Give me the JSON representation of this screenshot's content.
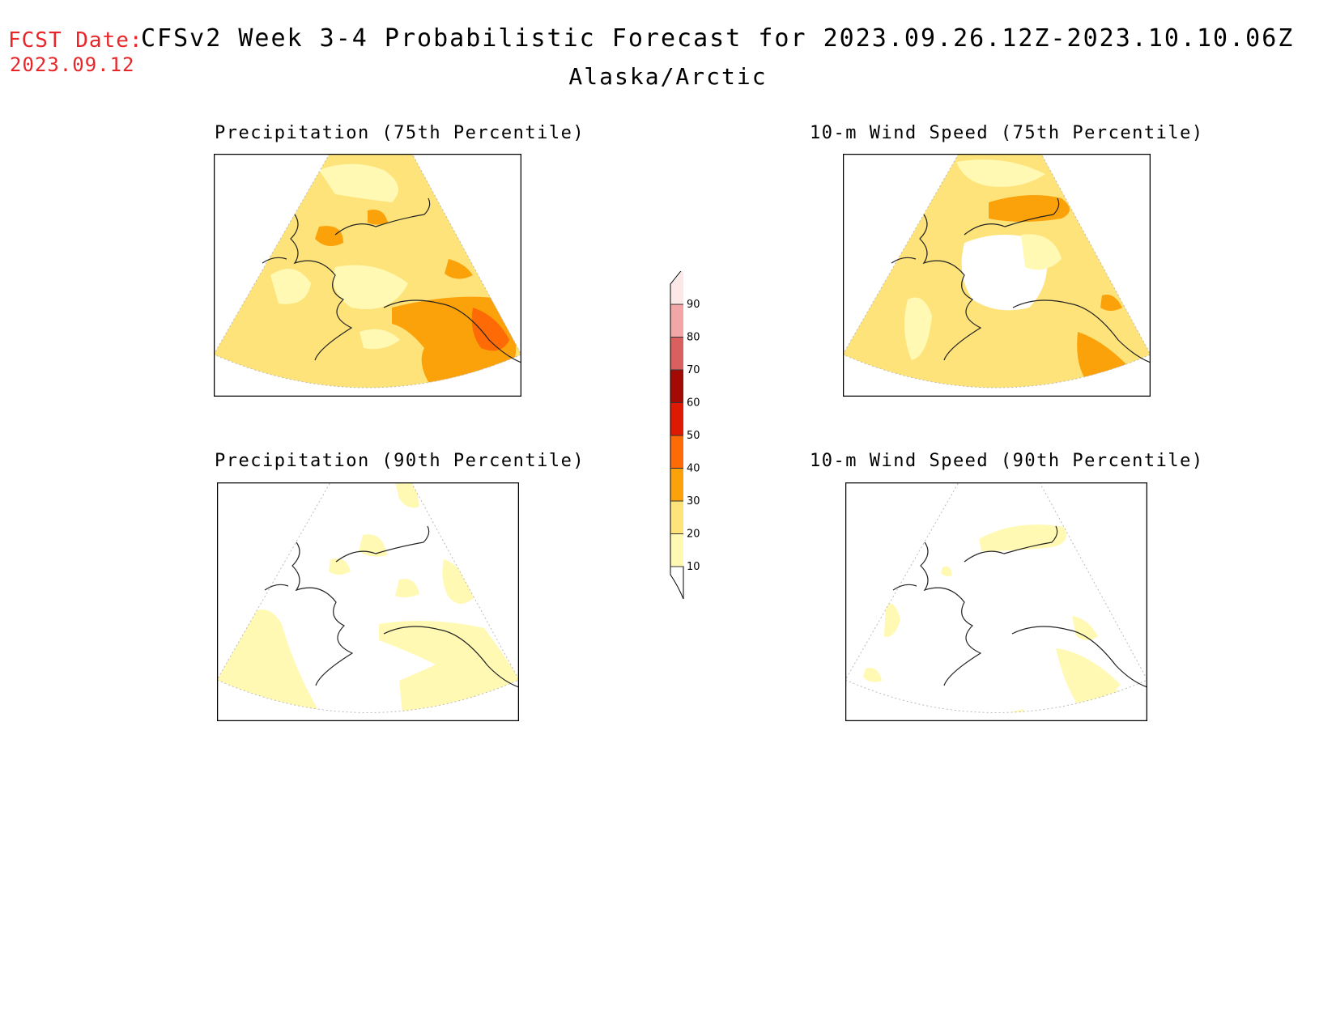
{
  "header": {
    "fcst_label": "FCST Date:",
    "fcst_date": "2023.09.12",
    "title": "CFSv2 Week 3-4 Probabilistic Forecast for 2023.09.26.12Z-2023.10.10.06Z",
    "region": "Alaska/Arctic"
  },
  "panels": [
    {
      "id": "precip-75",
      "title": "Precipitation (75th Percentile)"
    },
    {
      "id": "wind-75",
      "title": "10-m Wind Speed (75th Percentile)"
    },
    {
      "id": "precip-90",
      "title": "Precipitation (90th Percentile)"
    },
    {
      "id": "wind-90",
      "title": "10-m Wind Speed (90th Percentile)"
    }
  ],
  "colorbar": {
    "labels": [
      "10",
      "20",
      "30",
      "40",
      "50",
      "60",
      "70",
      "80",
      "90"
    ],
    "colors": [
      "#ffffff",
      "#fff9b3",
      "#fde37a",
      "#fba10a",
      "#fd6a06",
      "#de1a04",
      "#a30a04",
      "#d9605e",
      "#f2a6a6",
      "#fde8e8"
    ]
  }
}
